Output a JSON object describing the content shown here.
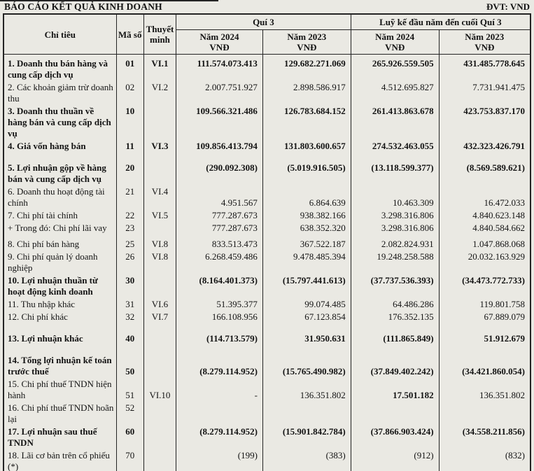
{
  "colors": {
    "background": "#eae9e3",
    "border": "#242424",
    "text": "#131313"
  },
  "page": {
    "title": "BÁO CÁO KẾT QUẢ KINH DOANH",
    "unit_label": "ĐVT: VND"
  },
  "table": {
    "headers": {
      "chi_tieu": "Chỉ tiêu",
      "ma_so": "Mã số",
      "thuyet_minh": "Thuyết minh",
      "group_q3": "Quí 3",
      "group_ytd": "Luỹ kế đầu năm đến cuối Quí 3",
      "year_2024": "Năm 2024",
      "year_2023": "Năm 2023",
      "currency": "VNĐ"
    },
    "rows": [
      {
        "label": "1. Doanh thu bán hàng và cung cấp dịch vụ",
        "code": "01",
        "note": "VI.1",
        "values": [
          "111.574.073.413",
          "129.682.271.069",
          "265.926.559.505",
          "431.485.778.645"
        ],
        "bold": true
      },
      {
        "label": "2. Các khoản giảm trừ doanh thu",
        "code": "02",
        "note": "VI.2",
        "values": [
          "2.007.751.927",
          "2.898.586.917",
          "4.512.695.827",
          "7.731.941.475"
        ]
      },
      {
        "label": "3. Doanh thu thuần về hàng bán và cung cấp dịch vụ",
        "code": "10",
        "note": "",
        "values": [
          "109.566.321.486",
          "126.783.684.152",
          "261.413.863.678",
          "423.753.837.170"
        ],
        "bold": true
      },
      {
        "label": "4. Giá vốn hàng bán",
        "code": "11",
        "note": "VI.3",
        "values": [
          "109.856.413.794",
          "131.803.600.657",
          "274.532.463.055",
          "432.323.426.791"
        ],
        "bold": true
      },
      {
        "label": "5. Lợi nhuận gộp về hàng bán và cung cấp dịch vụ",
        "code": "20",
        "note": "",
        "values": [
          "(290.092.308)",
          "(5.019.916.505)",
          "(13.118.599.377)",
          "(8.569.589.621)"
        ],
        "bold": true,
        "gap": "lg"
      },
      {
        "label": "6. Doanh thu hoạt động tài chính",
        "code": "21",
        "note": "VI.4",
        "values": [
          "4.951.567",
          "6.864.639",
          "10.463.309",
          "16.472.033"
        ],
        "values_bottom": true
      },
      {
        "label": "7. Chi phí tài chính",
        "code": "22",
        "note": "VI.5",
        "values": [
          "777.287.673",
          "938.382.166",
          "3.298.316.806",
          "4.840.623.148"
        ]
      },
      {
        "label": "+ Trong đó: Chi phí lãi vay",
        "code": "23",
        "note": "",
        "values": [
          "777.287.673",
          "638.352.320",
          "3.298.316.806",
          "4.840.584.662"
        ]
      },
      {
        "label": "8. Chi phí bán hàng",
        "code": "25",
        "note": "VI.8",
        "values": [
          "833.513.473",
          "367.522.187",
          "2.082.824.931",
          "1.047.868.068"
        ],
        "gap": "sm"
      },
      {
        "label": "9. Chi phí quản lý doanh nghiệp",
        "code": "26",
        "note": "VI.8",
        "values": [
          "6.268.459.486",
          "9.478.485.394",
          "19.248.258.588",
          "20.032.163.929"
        ]
      },
      {
        "label": "10. Lợi nhuận thuần từ hoạt động kinh doanh",
        "code": "30",
        "note": "",
        "values": [
          "(8.164.401.373)",
          "(15.797.441.613)",
          "(37.737.536.393)",
          "(34.473.772.733)"
        ],
        "bold": true
      },
      {
        "label": "11. Thu nhập khác",
        "code": "31",
        "note": "VI.6",
        "values": [
          "51.395.377",
          "99.074.485",
          "64.486.286",
          "119.801.758"
        ]
      },
      {
        "label": "12. Chi phí khác",
        "code": "32",
        "note": "VI.7",
        "values": [
          "166.108.956",
          "67.123.854",
          "176.352.135",
          "67.889.079"
        ]
      },
      {
        "label": "13. Lợi nhuận khác",
        "code": "40",
        "note": "",
        "values": [
          "(114.713.579)",
          "31.950.631",
          "(111.865.849)",
          "51.912.679"
        ],
        "bold": true,
        "gap": "lg"
      },
      {
        "label": "14. Tổng lợi nhuận kế toán trước thuế",
        "code": "50",
        "note": "",
        "values": [
          "(8.279.114.952)",
          "(15.765.490.982)",
          "(37.849.402.242)",
          "(34.421.860.054)"
        ],
        "bold": true,
        "gap": "lg",
        "values_bottom": true,
        "meta_bottom": true
      },
      {
        "label": "15. Chi phí thuế TNDN hiện hành",
        "code": "51",
        "note": "VI.10",
        "values": [
          "-",
          "136.351.802",
          "17.501.182",
          "136.351.802"
        ],
        "values_bottom": true,
        "meta_bottom": true,
        "bold_value_indexes": [
          2
        ]
      },
      {
        "label": "16. Chi phí thuế TNDN hoãn lại",
        "code": "52",
        "note": "",
        "values": [
          "",
          "",
          "",
          ""
        ]
      },
      {
        "label": "17. Lợi nhuận sau thuế TNDN",
        "code": "60",
        "note": "",
        "values": [
          "(8.279.114.952)",
          "(15.901.842.784)",
          "(37.866.903.424)",
          "(34.558.211.856)"
        ],
        "bold": true
      },
      {
        "label": "18. Lãi cơ bản trên cổ phiếu (*)",
        "code": "70",
        "note": "",
        "values": [
          "(199)",
          "(383)",
          "(912)",
          "(832)"
        ]
      }
    ]
  }
}
